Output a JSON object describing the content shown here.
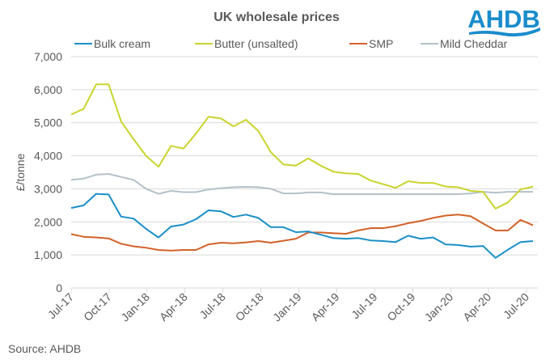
{
  "logo_text": "AHDB",
  "source": "Source: AHDB",
  "chart_data": {
    "type": "line",
    "title": "UK wholesale prices",
    "xlabel": "",
    "ylabel": "£/tonne",
    "ylim": [
      0,
      7000
    ],
    "yticks": [
      "0",
      "1,000",
      "2,000",
      "3,000",
      "4,000",
      "5,000",
      "6,000",
      "7,000"
    ],
    "xticks": [
      "Jul-17",
      "Oct-17",
      "Jan-18",
      "Apr-18",
      "Jul-18",
      "Oct-18",
      "Jan-19",
      "Apr-19",
      "Jul-19",
      "Oct-19",
      "Jan-20",
      "Apr-20",
      "Jul-20"
    ],
    "x_range": [
      "Jul-17",
      "Jul-20"
    ],
    "grid": "horizontal",
    "legend": "top",
    "colors": {
      "logo": "#1a8ccc",
      "grid": "#d9d9d9",
      "text": "#595959"
    },
    "series": [
      {
        "name": "Bulk cream",
        "color": "#1b8fc7",
        "values": [
          2420,
          2500,
          2850,
          2830,
          2160,
          2100,
          1790,
          1530,
          1860,
          1920,
          2080,
          2350,
          2320,
          2150,
          2220,
          2120,
          1840,
          1840,
          1690,
          1710,
          1610,
          1510,
          1490,
          1510,
          1440,
          1420,
          1390,
          1580,
          1490,
          1530,
          1320,
          1300,
          1250,
          1270,
          910,
          1160,
          1390,
          1420
        ]
      },
      {
        "name": "Butter (unsalted)",
        "color": "#c8d42c",
        "values": [
          5250,
          5420,
          6160,
          6160,
          5040,
          4500,
          4000,
          3670,
          4300,
          4220,
          4670,
          5180,
          5130,
          4890,
          5090,
          4750,
          4110,
          3740,
          3700,
          3920,
          3700,
          3520,
          3470,
          3450,
          3250,
          3140,
          3030,
          3230,
          3180,
          3180,
          3070,
          3050,
          2940,
          2910,
          2400,
          2590,
          2980,
          3070
        ]
      },
      {
        "name": "SMP",
        "color": "#d2622a",
        "values": [
          1630,
          1550,
          1530,
          1500,
          1340,
          1260,
          1220,
          1150,
          1130,
          1150,
          1150,
          1320,
          1370,
          1350,
          1380,
          1420,
          1370,
          1430,
          1490,
          1680,
          1680,
          1660,
          1640,
          1740,
          1810,
          1810,
          1870,
          1960,
          2030,
          2120,
          2190,
          2220,
          2170,
          1950,
          1740,
          1740,
          2060,
          1900
        ]
      },
      {
        "name": "Mild Cheddar",
        "color": "#b4c1c8",
        "values": [
          3270,
          3310,
          3430,
          3450,
          3360,
          3270,
          3000,
          2850,
          2940,
          2900,
          2900,
          2980,
          3020,
          3050,
          3060,
          3050,
          3000,
          2860,
          2860,
          2890,
          2890,
          2840,
          2840,
          2840,
          2840,
          2840,
          2840,
          2840,
          2840,
          2840,
          2840,
          2840,
          2860,
          2910,
          2880,
          2910,
          2910,
          2910
        ]
      }
    ]
  }
}
